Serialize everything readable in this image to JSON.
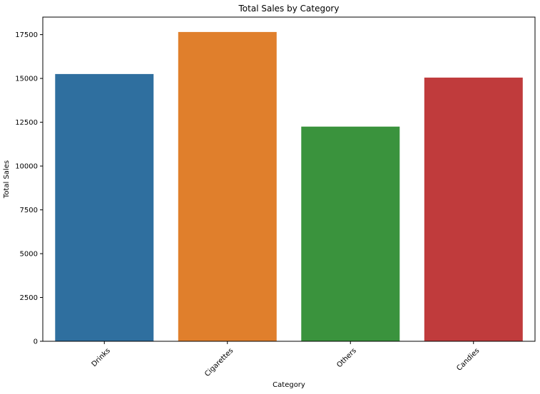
{
  "chart_data": {
    "type": "bar",
    "title": "Total Sales by Category",
    "xlabel": "Category",
    "ylabel": "Total Sales",
    "categories": [
      "Drinks",
      "Cigarettes",
      "Others",
      "Candies"
    ],
    "values": [
      15250,
      17650,
      12250,
      15050
    ],
    "colors": [
      "#2f6f9f",
      "#e07f2c",
      "#3a933d",
      "#c03b3c"
    ],
    "ylim": [
      0,
      18500
    ],
    "yticks": [
      0,
      2500,
      5000,
      7500,
      10000,
      12500,
      15000,
      17500
    ],
    "ytick_labels": [
      "0",
      "2500",
      "5000",
      "7500",
      "10000",
      "12500",
      "15000",
      "17500"
    ],
    "grid": false,
    "legend": "none"
  }
}
